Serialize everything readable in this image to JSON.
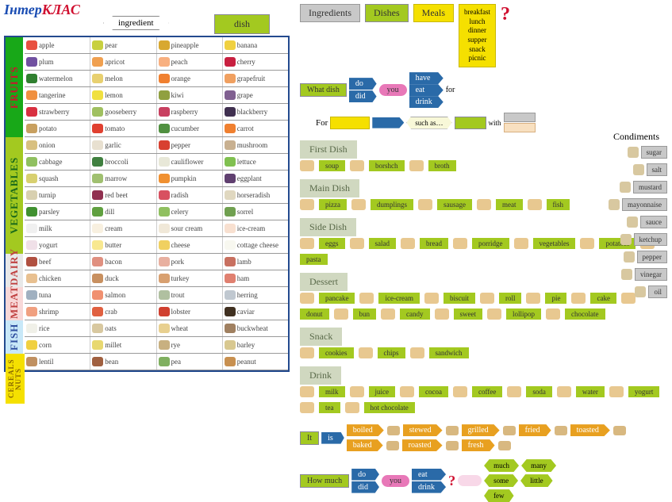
{
  "logo": {
    "part1": "Інтер",
    "part2": "КЛАС"
  },
  "top_labels": {
    "ingredient": "ingredient",
    "dish": "dish"
  },
  "headers": {
    "ingredients": "Ingredients",
    "dishes": "Dishes",
    "meals": "Meals"
  },
  "meals_list": [
    "breakfast",
    "lunch",
    "dinner",
    "supper",
    "snack",
    "picnic"
  ],
  "categories": [
    {
      "name": "FRUITS",
      "class": "cat-fruits",
      "rows": [
        [
          {
            "t": "apple",
            "c": "#e85040"
          },
          {
            "t": "pear",
            "c": "#c8d040"
          },
          {
            "t": "pineapple",
            "c": "#d8a830"
          },
          {
            "t": "banana",
            "c": "#f0d040"
          }
        ],
        [
          {
            "t": "plum",
            "c": "#7050a0"
          },
          {
            "t": "apricot",
            "c": "#f0a050"
          },
          {
            "t": "peach",
            "c": "#f8b080"
          },
          {
            "t": "cherry",
            "c": "#c82040"
          }
        ],
        [
          {
            "t": "watermelon",
            "c": "#308030"
          },
          {
            "t": "melon",
            "c": "#e8d070"
          },
          {
            "t": "orange",
            "c": "#f08030"
          },
          {
            "t": "grapefruit",
            "c": "#f0a060"
          }
        ],
        [
          {
            "t": "tangerine",
            "c": "#f09040"
          },
          {
            "t": "lemon",
            "c": "#f0e040"
          },
          {
            "t": "kiwi",
            "c": "#90a040"
          },
          {
            "t": "grape",
            "c": "#806090"
          }
        ],
        [
          {
            "t": "strawberry",
            "c": "#d83040"
          },
          {
            "t": "gooseberry",
            "c": "#a0c060"
          },
          {
            "t": "raspberry",
            "c": "#c84060"
          },
          {
            "t": "blackberry",
            "c": "#403050"
          }
        ]
      ]
    },
    {
      "name": "VEGETABLES",
      "class": "cat-veg",
      "rows": [
        [
          {
            "t": "potato",
            "c": "#c8a060"
          },
          {
            "t": "tomato",
            "c": "#e04030"
          },
          {
            "t": "cucumber",
            "c": "#509040"
          },
          {
            "t": "carrot",
            "c": "#f08030"
          }
        ],
        [
          {
            "t": "onion",
            "c": "#d8c080"
          },
          {
            "t": "garlic",
            "c": "#e8e0d0"
          },
          {
            "t": "pepper",
            "c": "#d84030"
          },
          {
            "t": "mushroom",
            "c": "#c8b090"
          }
        ],
        [
          {
            "t": "cabbage",
            "c": "#90c060"
          },
          {
            "t": "broccoli",
            "c": "#408040"
          },
          {
            "t": "cauliflower",
            "c": "#e8e8d8"
          },
          {
            "t": "lettuce",
            "c": "#80c050"
          }
        ],
        [
          {
            "t": "squash",
            "c": "#d8d070"
          },
          {
            "t": "marrow",
            "c": "#a0c070"
          },
          {
            "t": "pumpkin",
            "c": "#f09030"
          },
          {
            "t": "eggplant",
            "c": "#604070"
          }
        ],
        [
          {
            "t": "turnip",
            "c": "#d8d0b0"
          },
          {
            "t": "red beet",
            "c": "#903050"
          },
          {
            "t": "radish",
            "c": "#d85060"
          },
          {
            "t": "horseradish",
            "c": "#e0d8c0"
          }
        ],
        [
          {
            "t": "parsley",
            "c": "#409030"
          },
          {
            "t": "dill",
            "c": "#60a040"
          },
          {
            "t": "celery",
            "c": "#90c060"
          },
          {
            "t": "sorrel",
            "c": "#70a050"
          }
        ]
      ]
    },
    {
      "name": "DAIRY",
      "class": "cat-dairy",
      "rows": [
        [
          {
            "t": "milk",
            "c": "#f0f0f0"
          },
          {
            "t": "cream",
            "c": "#f8f0e0"
          },
          {
            "t": "sour cream",
            "c": "#f0e8d8"
          },
          {
            "t": "ice-cream",
            "c": "#f8e0d0"
          }
        ],
        [
          {
            "t": "yogurt",
            "c": "#f0e0e8"
          },
          {
            "t": "butter",
            "c": "#f8e890"
          },
          {
            "t": "cheese",
            "c": "#f0d060"
          },
          {
            "t": "cottage cheese",
            "c": "#f8f8f0"
          }
        ]
      ]
    },
    {
      "name": "MEAT",
      "class": "cat-meat",
      "rows": [
        [
          {
            "t": "beef",
            "c": "#b05040"
          },
          {
            "t": "bacon",
            "c": "#e09080"
          },
          {
            "t": "pork",
            "c": "#e8b0a0"
          },
          {
            "t": "lamb",
            "c": "#c87060"
          }
        ],
        [
          {
            "t": "chicken",
            "c": "#e8c090"
          },
          {
            "t": "duck",
            "c": "#c89060"
          },
          {
            "t": "turkey",
            "c": "#d8a070"
          },
          {
            "t": "ham",
            "c": "#e08070"
          }
        ]
      ]
    },
    {
      "name": "FISH",
      "class": "cat-fish",
      "rows": [
        [
          {
            "t": "tuna",
            "c": "#a0b0c0"
          },
          {
            "t": "salmon",
            "c": "#f09070"
          },
          {
            "t": "trout",
            "c": "#b0c0a0"
          },
          {
            "t": "herring",
            "c": "#c0c8d0"
          }
        ],
        [
          {
            "t": "shrimp",
            "c": "#f0a080"
          },
          {
            "t": "crab",
            "c": "#e06040"
          },
          {
            "t": "lobster",
            "c": "#d04030"
          },
          {
            "t": "caviar",
            "c": "#403020"
          }
        ]
      ]
    },
    {
      "name": "CEREALS NUTS",
      "class": "cat-cereal",
      "rows": [
        [
          {
            "t": "rice",
            "c": "#f0f0e8"
          },
          {
            "t": "oats",
            "c": "#d8c8a0"
          },
          {
            "t": "wheat",
            "c": "#e8d090"
          },
          {
            "t": "buckwheat",
            "c": "#a08060"
          }
        ],
        [
          {
            "t": "corn",
            "c": "#f0d040"
          },
          {
            "t": "millet",
            "c": "#e8d870"
          },
          {
            "t": "rye",
            "c": "#c8b080"
          },
          {
            "t": "barley",
            "c": "#d8c890"
          }
        ],
        [
          {
            "t": "lentil",
            "c": "#c09060"
          },
          {
            "t": "bean",
            "c": "#a06040"
          },
          {
            "t": "pea",
            "c": "#80b060"
          },
          {
            "t": "peanut",
            "c": "#c89050"
          }
        ]
      ]
    }
  ],
  "q1": {
    "what": "What dish",
    "do": "do",
    "did": "did",
    "you": "you",
    "have": "have",
    "eat": "eat",
    "drink": "drink",
    "for": "for"
  },
  "q2": {
    "for": "For",
    "such": "such as…",
    "with": "with"
  },
  "dish_sections": [
    {
      "label": "First Dish",
      "items": [
        "soup",
        "borshch",
        "broth"
      ]
    },
    {
      "label": "Main Dish",
      "items": [
        "pizza",
        "dumplings",
        "sausage",
        "meat",
        "fish"
      ]
    },
    {
      "label": "Side Dish",
      "items": [
        "eggs",
        "salad",
        "bread",
        "porridge",
        "vegetables",
        "potatoes",
        "pasta"
      ]
    },
    {
      "label": "Dessert",
      "items": [
        "pancake",
        "ice-cream",
        "biscuit",
        "roll",
        "pie",
        "cake",
        "donut",
        "bun",
        "candy",
        "sweet",
        "lollipop",
        "chocolate"
      ]
    },
    {
      "label": "Snack",
      "items": [
        "cookies",
        "chips",
        "sandwich"
      ]
    },
    {
      "label": "Drink",
      "items": [
        "milk",
        "juice",
        "cocoa",
        "coffee",
        "soda",
        "water",
        "yogurt",
        "tea",
        "hot chocolate"
      ]
    }
  ],
  "condiments": {
    "title": "Condiments",
    "items": [
      "sugar",
      "salt",
      "mustard",
      "mayonnaise",
      "sauce",
      "ketchup",
      "pepper",
      "vinegar",
      "oil"
    ]
  },
  "cooking": {
    "it": "It",
    "is": "is",
    "methods": [
      "boiled",
      "stewed",
      "grilled",
      "fried",
      "toasted",
      "baked",
      "roasted",
      "fresh"
    ]
  },
  "howmuch": {
    "label": "How much",
    "do": "do",
    "did": "did",
    "you": "you",
    "eat": "eat",
    "drink": "drink",
    "options": [
      "much",
      "many",
      "some",
      "little",
      "few"
    ]
  }
}
